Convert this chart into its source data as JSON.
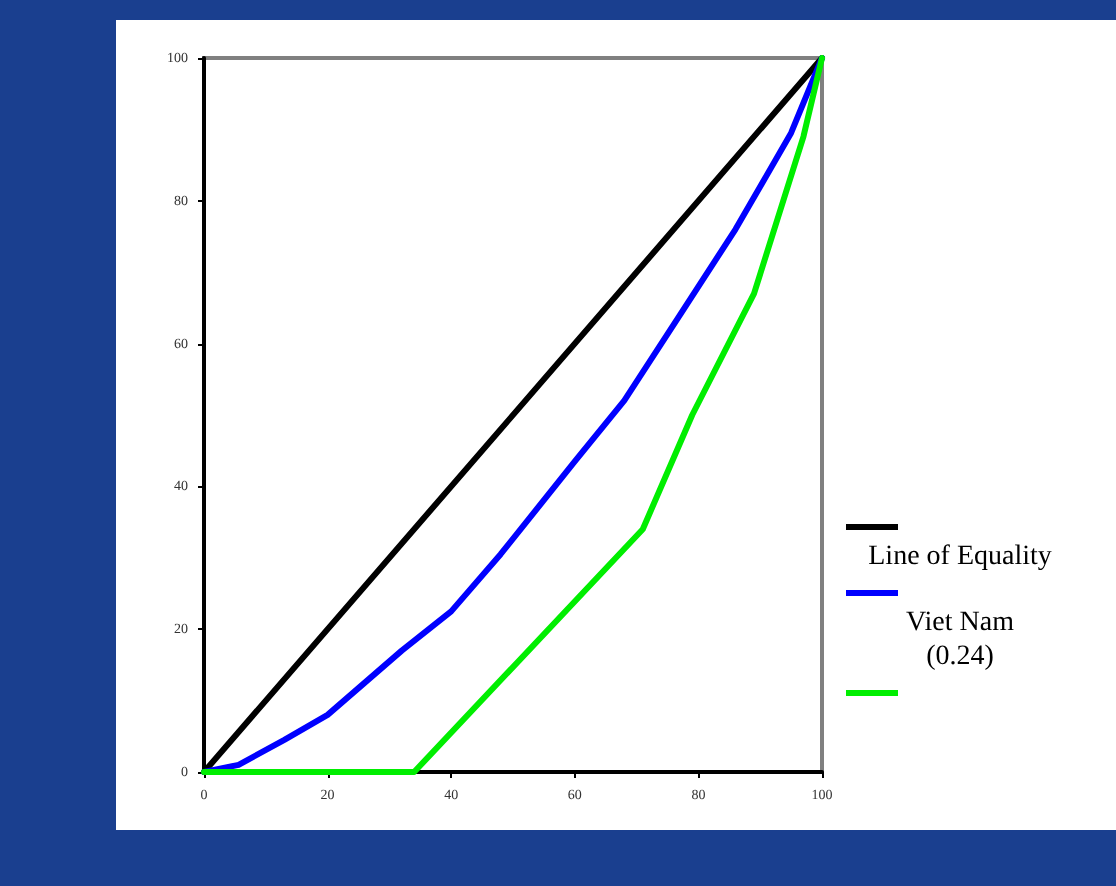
{
  "chart_data": {
    "type": "line",
    "xlim": [
      0,
      100
    ],
    "xticks": [
      0,
      20,
      40,
      60,
      80,
      100
    ],
    "ylim": [
      0,
      100
    ],
    "yticks": [
      0,
      20,
      40,
      60,
      80,
      100
    ],
    "grid": false,
    "legend": "right",
    "marker": "none",
    "line_style": "solid",
    "series": [
      {
        "name": "Line of Equality",
        "color": "#000000",
        "x": [
          0,
          100
        ],
        "values": [
          0,
          100
        ]
      },
      {
        "name": "Viet Nam\n(0.24)",
        "color": "#0000ff",
        "x": [
          0,
          5.6,
          13,
          20,
          32,
          40,
          48,
          60,
          68,
          77,
          86,
          95,
          100
        ],
        "values": [
          0,
          1,
          4.5,
          8,
          17,
          22.5,
          30.5,
          43.5,
          52,
          64,
          76,
          89.5,
          100
        ]
      },
      {
        "color": "#00ee00",
        "x": [
          0,
          34,
          71,
          79,
          89,
          97,
          100
        ],
        "values": [
          0,
          0,
          34,
          50,
          67,
          89,
          100
        ]
      }
    ]
  }
}
